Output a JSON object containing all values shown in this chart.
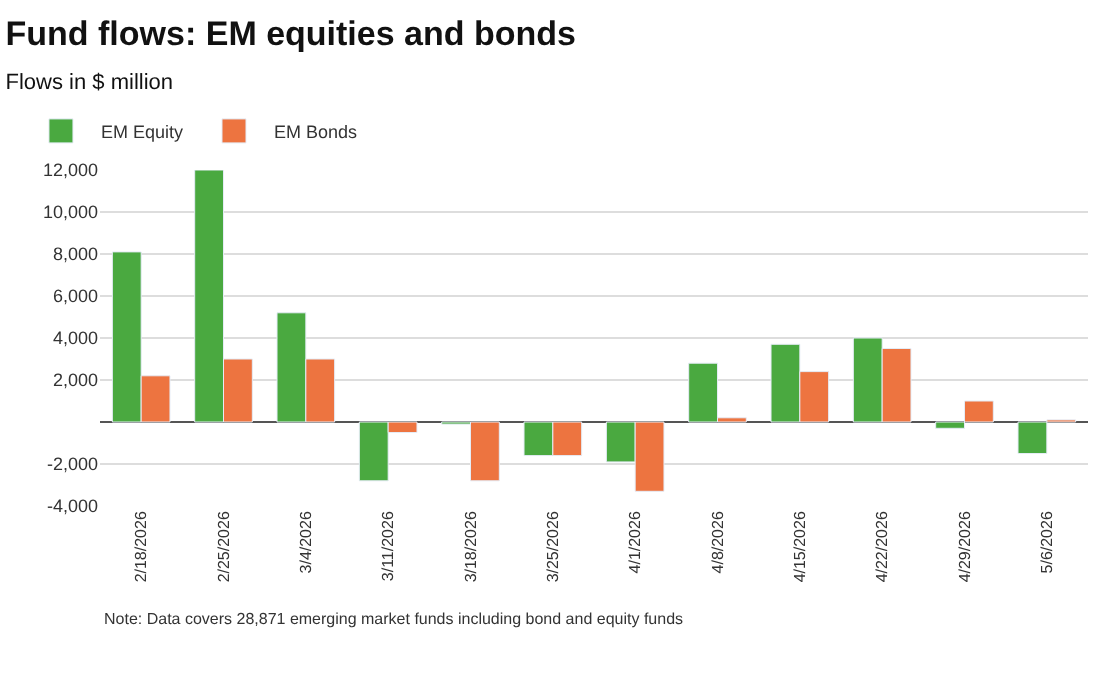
{
  "chart_data": {
    "type": "bar",
    "title": "Fund flows: EM equities and bonds",
    "subtitle": "Flows in $ million",
    "categories": [
      "2/18/2026",
      "2/25/2026",
      "3/4/2026",
      "3/11/2026",
      "3/18/2026",
      "3/25/2026",
      "4/1/2026",
      "4/8/2026",
      "4/15/2026",
      "4/22/2026",
      "4/29/2026",
      "5/6/2026"
    ],
    "series": [
      {
        "name": "EM Equity",
        "color": "#4aa940",
        "values": [
          8100,
          12000,
          5200,
          -2800,
          -100,
          -1600,
          -1900,
          2800,
          3700,
          4000,
          -300,
          -1500
        ]
      },
      {
        "name": "EM Bonds",
        "color": "#ed7440",
        "values": [
          2200,
          3000,
          3000,
          -500,
          -2800,
          -1600,
          -3300,
          200,
          2400,
          3500,
          1000,
          100
        ]
      }
    ],
    "ylim": [
      -4000,
      12000
    ],
    "yticks": [
      {
        "value": -4000,
        "label": "-4,000"
      },
      {
        "value": -2000,
        "label": "-2,000"
      },
      {
        "value": 0,
        "label": null
      },
      {
        "value": 2000,
        "label": "2,000"
      },
      {
        "value": 4000,
        "label": "4,000"
      },
      {
        "value": 6000,
        "label": "6,000"
      },
      {
        "value": 8000,
        "label": "8,000"
      },
      {
        "value": 10000,
        "label": "10,000"
      },
      {
        "value": 12000,
        "label": "12,000"
      }
    ],
    "grid": "y",
    "legend": "top left",
    "annotations": [
      "Note: Data covers 28,871 emerging market funds including bond and equity funds"
    ]
  }
}
